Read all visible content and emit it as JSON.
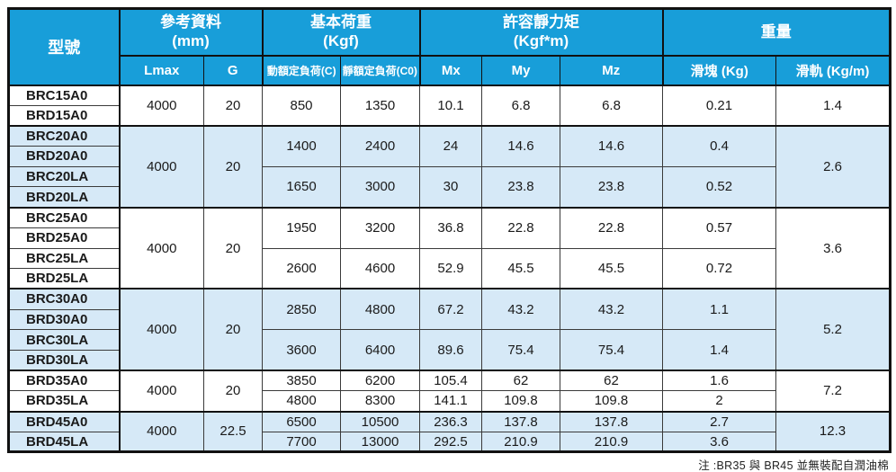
{
  "colors": {
    "header_bg": "#189ED9",
    "shaded_row_bg": "#D6E9F7",
    "grid_line": "#3A3A3A",
    "outer_border": "#111111"
  },
  "table": {
    "header": {
      "model_label": "型號",
      "groups": [
        {
          "label": "參考資料",
          "unit": "(mm)",
          "cols": [
            "Lmax",
            "G"
          ]
        },
        {
          "label": "基本荷重",
          "unit": "(Kgf)",
          "cols": [
            "動額定負荷(C)",
            "靜額定負荷(C0)"
          ]
        },
        {
          "label": "許容靜力矩",
          "unit": "(Kgf*m)",
          "cols": [
            "Mx",
            "My",
            "Mz"
          ]
        },
        {
          "label": "重量",
          "unit": "",
          "cols": [
            "滑塊 (Kg)",
            "滑軌 (Kg/m)"
          ]
        }
      ]
    },
    "groups": [
      {
        "shaded": false,
        "lmax": "4000",
        "g": "20",
        "rail": "1.4",
        "subgroups": [
          {
            "models": [
              "BRC15A0",
              "BRD15A0"
            ],
            "c": "850",
            "c0": "1350",
            "mx": "10.1",
            "my": "6.8",
            "mz": "6.8",
            "block": "0.21"
          }
        ]
      },
      {
        "shaded": true,
        "lmax": "4000",
        "g": "20",
        "rail": "2.6",
        "subgroups": [
          {
            "models": [
              "BRC20A0",
              "BRD20A0"
            ],
            "c": "1400",
            "c0": "2400",
            "mx": "24",
            "my": "14.6",
            "mz": "14.6",
            "block": "0.4"
          },
          {
            "models": [
              "BRC20LA",
              "BRD20LA"
            ],
            "c": "1650",
            "c0": "3000",
            "mx": "30",
            "my": "23.8",
            "mz": "23.8",
            "block": "0.52"
          }
        ]
      },
      {
        "shaded": false,
        "lmax": "4000",
        "g": "20",
        "rail": "3.6",
        "subgroups": [
          {
            "models": [
              "BRC25A0",
              "BRD25A0"
            ],
            "c": "1950",
            "c0": "3200",
            "mx": "36.8",
            "my": "22.8",
            "mz": "22.8",
            "block": "0.57"
          },
          {
            "models": [
              "BRC25LA",
              "BRD25LA"
            ],
            "c": "2600",
            "c0": "4600",
            "mx": "52.9",
            "my": "45.5",
            "mz": "45.5",
            "block": "0.72"
          }
        ]
      },
      {
        "shaded": true,
        "lmax": "4000",
        "g": "20",
        "rail": "5.2",
        "subgroups": [
          {
            "models": [
              "BRC30A0",
              "BRD30A0"
            ],
            "c": "2850",
            "c0": "4800",
            "mx": "67.2",
            "my": "43.2",
            "mz": "43.2",
            "block": "1.1"
          },
          {
            "models": [
              "BRC30LA",
              "BRD30LA"
            ],
            "c": "3600",
            "c0": "6400",
            "mx": "89.6",
            "my": "75.4",
            "mz": "75.4",
            "block": "1.4"
          }
        ]
      },
      {
        "shaded": false,
        "lmax": "4000",
        "g": "20",
        "rail": "7.2",
        "subgroups": [
          {
            "models": [
              "BRD35A0"
            ],
            "c": "3850",
            "c0": "6200",
            "mx": "105.4",
            "my": "62",
            "mz": "62",
            "block": "1.6"
          },
          {
            "models": [
              "BRD35LA"
            ],
            "c": "4800",
            "c0": "8300",
            "mx": "141.1",
            "my": "109.8",
            "mz": "109.8",
            "block": "2"
          }
        ]
      },
      {
        "shaded": true,
        "lmax": "4000",
        "g": "22.5",
        "rail": "12.3",
        "subgroups": [
          {
            "models": [
              "BRD45A0"
            ],
            "c": "6500",
            "c0": "10500",
            "mx": "236.3",
            "my": "137.8",
            "mz": "137.8",
            "block": "2.7"
          },
          {
            "models": [
              "BRD45LA"
            ],
            "c": "7700",
            "c0": "13000",
            "mx": "292.5",
            "my": "210.9",
            "mz": "210.9",
            "block": "3.6"
          }
        ]
      }
    ],
    "note": "注 :BR35 與 BR45 並無裝配自潤油棉"
  }
}
